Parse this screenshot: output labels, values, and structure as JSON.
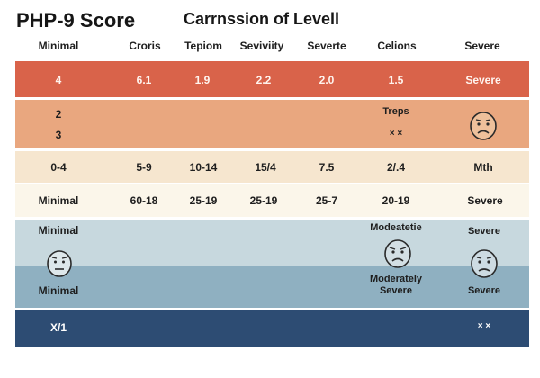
{
  "title": "PHP-9 Score",
  "subtitle": "Carrnssion of Levell",
  "columns": [
    "Minimal",
    "Croris",
    "Tepiom",
    "Seviviity",
    "Severte",
    "Celions",
    "Severe"
  ],
  "rows": {
    "r1": [
      "4",
      "6.1",
      "1.9",
      "2.2",
      "2.0",
      "1.5",
      "Severe"
    ],
    "r2": {
      "a": "2",
      "b": "3",
      "treps": "Treps",
      "marks": "× ×"
    },
    "r3": [
      "0-4",
      "5-9",
      "10-14",
      "15/4",
      "7.5",
      "2/.4",
      "Mth"
    ],
    "r4": [
      "Minimal",
      "60-18",
      "25-19",
      "25-19",
      "25-7",
      "20-19",
      "Severe"
    ],
    "r5": {
      "left": "Minimal",
      "mid": "Modeatetie",
      "right": "Severe"
    },
    "r6": {
      "left": "Minimal",
      "mid": "Moderately Severe",
      "right": "Severe"
    },
    "r7": {
      "left": "X/1",
      "right": "× ×"
    }
  },
  "colors": {
    "band1": "#d9634a",
    "band2": "#e9a77f",
    "band3": "#f6e6cf",
    "band4": "#fbf6ea",
    "band5": "#c7d8de",
    "band6": "#8fb0c1",
    "band7": "#2d4c73"
  },
  "icons": [
    "sad-face-icon",
    "neutral-face-icon",
    "frown-face-icon"
  ]
}
